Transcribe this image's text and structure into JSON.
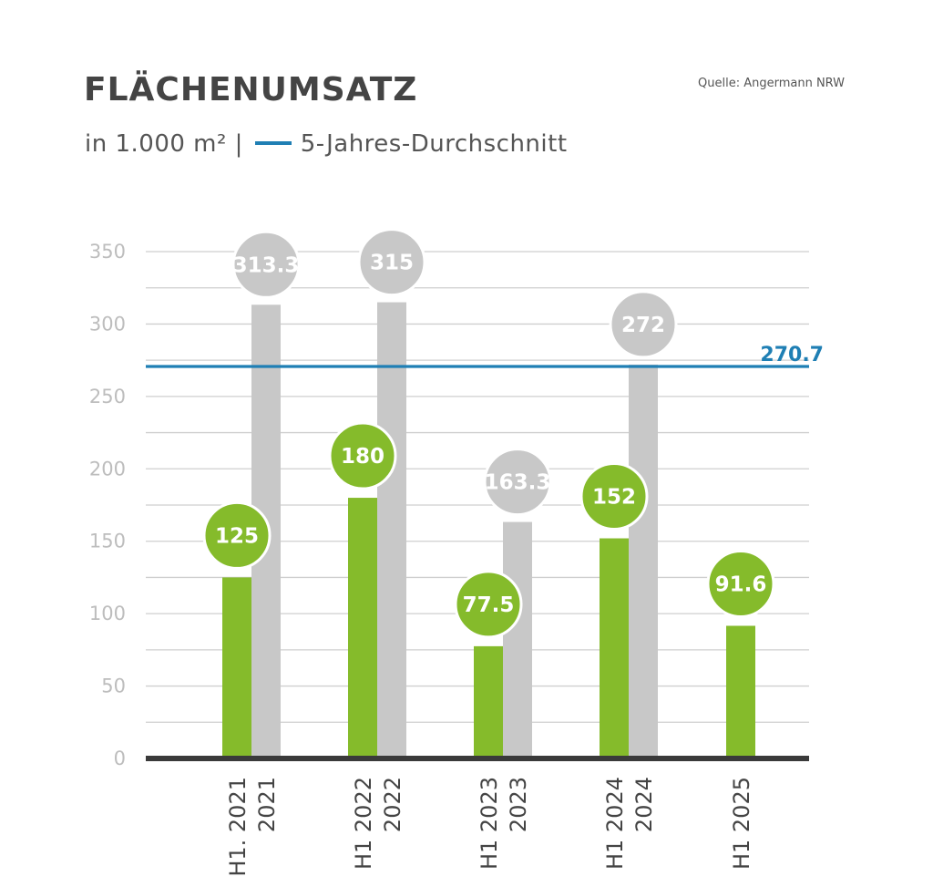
{
  "title": "FLÄCHENUMSATZ",
  "subtitle": {
    "unit_text": "in  1.000 m² |",
    "avg_label": "5-Jahres-Durchschnitt"
  },
  "source": "Quelle: Angermann NRW",
  "colors": {
    "green": "#85bb2b",
    "gray": "#c8c8c8",
    "average_line": "#1f7fb4",
    "baseline": "#3a3a3a",
    "grid": "#cfcfcf",
    "tick_text": "#bdbdbd"
  },
  "chart_data": {
    "type": "bar",
    "ylim": [
      0,
      350
    ],
    "yticks": [
      0,
      50,
      100,
      150,
      200,
      250,
      300,
      350
    ],
    "grid": true,
    "groups": [
      {
        "green_label": "H1. 2021",
        "gray_label": "2021",
        "green": 125,
        "gray": 313.3,
        "green_text": "125",
        "gray_text": "313.3"
      },
      {
        "green_label": "H1 2022",
        "gray_label": "2022",
        "green": 180,
        "gray": 315,
        "green_text": "180",
        "gray_text": "315"
      },
      {
        "green_label": "H1 2023",
        "gray_label": "2023",
        "green": 77.5,
        "gray": 163.3,
        "green_text": "77.5",
        "gray_text": "163.3"
      },
      {
        "green_label": "H1 2024",
        "gray_label": "2024",
        "green": 152,
        "gray": 272,
        "green_text": "152",
        "gray_text": "272"
      },
      {
        "green_label": "H1 2025",
        "gray_label": "",
        "green": 91.6,
        "gray": null,
        "green_text": "91.6",
        "gray_text": ""
      }
    ],
    "average": {
      "value": 270.7,
      "label": "270.7"
    }
  }
}
